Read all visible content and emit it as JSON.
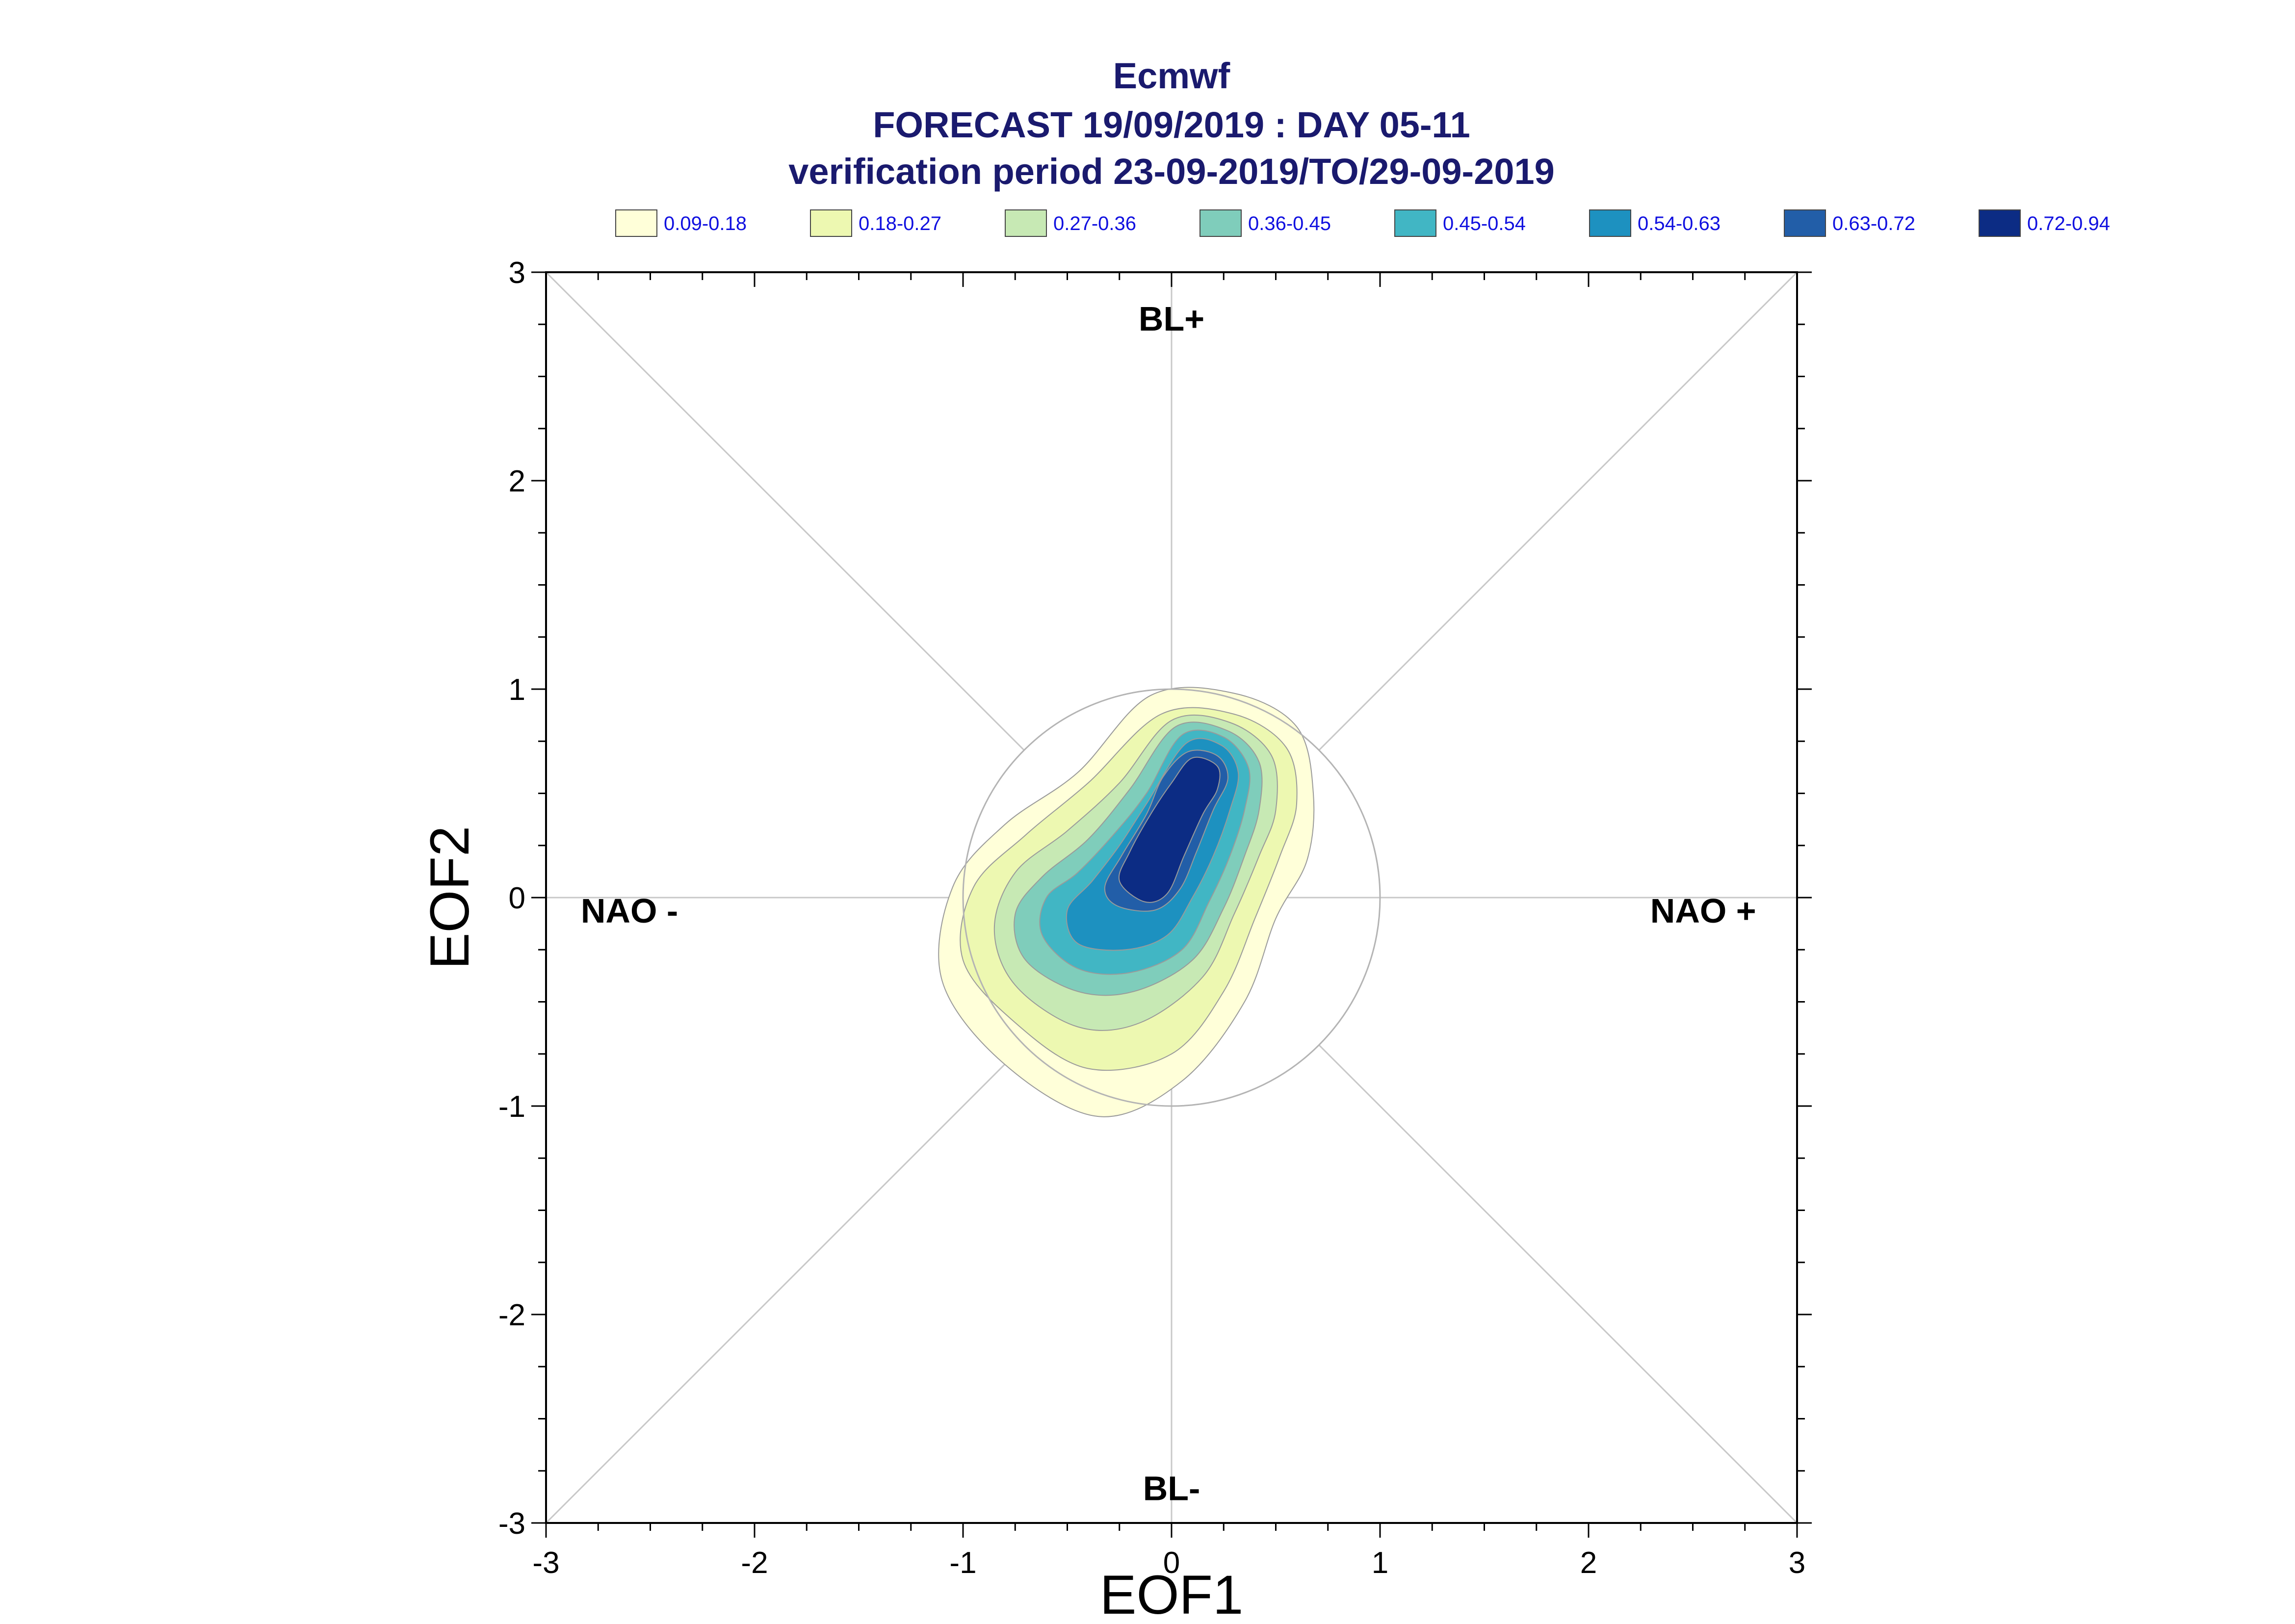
{
  "chart_data": {
    "type": "contour",
    "title_lines": [
      "Ecmwf",
      "FORECAST 19/09/2019 : DAY 05-11",
      "verification period 23-09-2019/TO/29-09-2019"
    ],
    "xlabel": "EOF1",
    "ylabel": "EOF2",
    "xlim": [
      -3,
      3
    ],
    "ylim": [
      -3,
      3
    ],
    "xticks": [
      "-3",
      "-2",
      "-1",
      "0",
      "1",
      "2",
      "3"
    ],
    "yticks": [
      "3",
      "2",
      "1",
      "0",
      "-1",
      "-2",
      "-3"
    ],
    "grid": false,
    "reference_circle_radius": 1,
    "regime_labels": {
      "top": "BL+",
      "bottom": "BL-",
      "left": "NAO -",
      "right": "NAO +"
    },
    "legend": {
      "placement": "top",
      "entries": [
        {
          "label": "0.09-0.18",
          "color": "#ffffd9"
        },
        {
          "label": "0.18-0.27",
          "color": "#edf8b1"
        },
        {
          "label": "0.27-0.36",
          "color": "#c7e9b4"
        },
        {
          "label": "0.36-0.45",
          "color": "#7fcdbb"
        },
        {
          "label": "0.45-0.54",
          "color": "#41b6c4"
        },
        {
          "label": "0.54-0.63",
          "color": "#1d91c0"
        },
        {
          "label": "0.63-0.72",
          "color": "#225ea8"
        },
        {
          "label": "0.72-0.94",
          "color": "#0c2c84"
        }
      ]
    },
    "density_levels": [
      {
        "range": "0.09-0.18",
        "color": "#ffffd9",
        "contour": [
          [
            -0.1,
            0.97
          ],
          [
            0.3,
            0.98
          ],
          [
            0.6,
            0.82
          ],
          [
            0.68,
            0.5
          ],
          [
            0.65,
            0.18
          ],
          [
            0.5,
            -0.1
          ],
          [
            0.35,
            -0.5
          ],
          [
            0.05,
            -0.88
          ],
          [
            -0.35,
            -1.05
          ],
          [
            -0.8,
            -0.8
          ],
          [
            -1.1,
            -0.4
          ],
          [
            -1.05,
            0.05
          ],
          [
            -0.8,
            0.35
          ],
          [
            -0.45,
            0.6
          ]
        ]
      },
      {
        "range": "0.18-0.27",
        "color": "#edf8b1",
        "contour": [
          [
            -0.05,
            0.88
          ],
          [
            0.3,
            0.88
          ],
          [
            0.55,
            0.72
          ],
          [
            0.6,
            0.45
          ],
          [
            0.52,
            0.2
          ],
          [
            0.4,
            -0.1
          ],
          [
            0.25,
            -0.45
          ],
          [
            0.0,
            -0.75
          ],
          [
            -0.4,
            -0.82
          ],
          [
            -0.75,
            -0.6
          ],
          [
            -1.0,
            -0.3
          ],
          [
            -0.95,
            0.05
          ],
          [
            -0.7,
            0.3
          ],
          [
            -0.4,
            0.55
          ]
        ]
      },
      {
        "range": "0.27-0.36",
        "color": "#c7e9b4",
        "contour": [
          [
            0.0,
            0.85
          ],
          [
            0.28,
            0.84
          ],
          [
            0.48,
            0.68
          ],
          [
            0.5,
            0.42
          ],
          [
            0.42,
            0.2
          ],
          [
            0.3,
            -0.08
          ],
          [
            0.15,
            -0.38
          ],
          [
            -0.15,
            -0.6
          ],
          [
            -0.45,
            -0.62
          ],
          [
            -0.75,
            -0.42
          ],
          [
            -0.85,
            -0.15
          ],
          [
            -0.75,
            0.12
          ],
          [
            -0.5,
            0.32
          ],
          [
            -0.25,
            0.55
          ]
        ]
      },
      {
        "range": "0.36-0.45",
        "color": "#7fcdbb",
        "contour": [
          [
            0.02,
            0.82
          ],
          [
            0.27,
            0.8
          ],
          [
            0.42,
            0.65
          ],
          [
            0.42,
            0.42
          ],
          [
            0.35,
            0.2
          ],
          [
            0.25,
            -0.05
          ],
          [
            0.1,
            -0.3
          ],
          [
            -0.18,
            -0.45
          ],
          [
            -0.45,
            -0.45
          ],
          [
            -0.7,
            -0.3
          ],
          [
            -0.75,
            -0.08
          ],
          [
            -0.62,
            0.1
          ],
          [
            -0.4,
            0.28
          ],
          [
            -0.2,
            0.52
          ]
        ]
      },
      {
        "range": "0.45-0.54",
        "color": "#41b6c4",
        "contour": [
          [
            0.05,
            0.78
          ],
          [
            0.25,
            0.77
          ],
          [
            0.37,
            0.62
          ],
          [
            0.35,
            0.42
          ],
          [
            0.28,
            0.2
          ],
          [
            0.18,
            -0.02
          ],
          [
            0.05,
            -0.25
          ],
          [
            -0.2,
            -0.36
          ],
          [
            -0.45,
            -0.34
          ],
          [
            -0.62,
            -0.18
          ],
          [
            -0.6,
            0.0
          ],
          [
            -0.45,
            0.12
          ],
          [
            -0.28,
            0.3
          ],
          [
            -0.12,
            0.5
          ]
        ]
      },
      {
        "range": "0.54-0.63",
        "color": "#1d91c0",
        "contour": [
          [
            0.07,
            0.74
          ],
          [
            0.24,
            0.73
          ],
          [
            0.32,
            0.6
          ],
          [
            0.28,
            0.42
          ],
          [
            0.2,
            0.2
          ],
          [
            0.1,
            0.0
          ],
          [
            -0.02,
            -0.18
          ],
          [
            -0.22,
            -0.25
          ],
          [
            -0.45,
            -0.22
          ],
          [
            -0.5,
            -0.06
          ],
          [
            -0.38,
            0.08
          ],
          [
            -0.25,
            0.25
          ],
          [
            -0.12,
            0.45
          ]
        ]
      },
      {
        "range": "0.63-0.72",
        "color": "#225ea8",
        "contour": [
          [
            0.08,
            0.7
          ],
          [
            0.22,
            0.68
          ],
          [
            0.27,
            0.57
          ],
          [
            0.2,
            0.42
          ],
          [
            0.12,
            0.22
          ],
          [
            0.04,
            0.04
          ],
          [
            -0.08,
            -0.06
          ],
          [
            -0.26,
            -0.04
          ],
          [
            -0.32,
            0.05
          ],
          [
            -0.24,
            0.2
          ],
          [
            -0.12,
            0.4
          ],
          [
            -0.04,
            0.58
          ]
        ]
      },
      {
        "range": "0.72-0.94",
        "color": "#0c2c84",
        "contour": [
          [
            0.1,
            0.67
          ],
          [
            0.22,
            0.63
          ],
          [
            0.22,
            0.52
          ],
          [
            0.15,
            0.4
          ],
          [
            0.06,
            0.2
          ],
          [
            -0.02,
            0.02
          ],
          [
            -0.13,
            -0.02
          ],
          [
            -0.25,
            0.08
          ],
          [
            -0.2,
            0.22
          ],
          [
            -0.1,
            0.4
          ],
          [
            0.0,
            0.55
          ]
        ]
      }
    ]
  }
}
